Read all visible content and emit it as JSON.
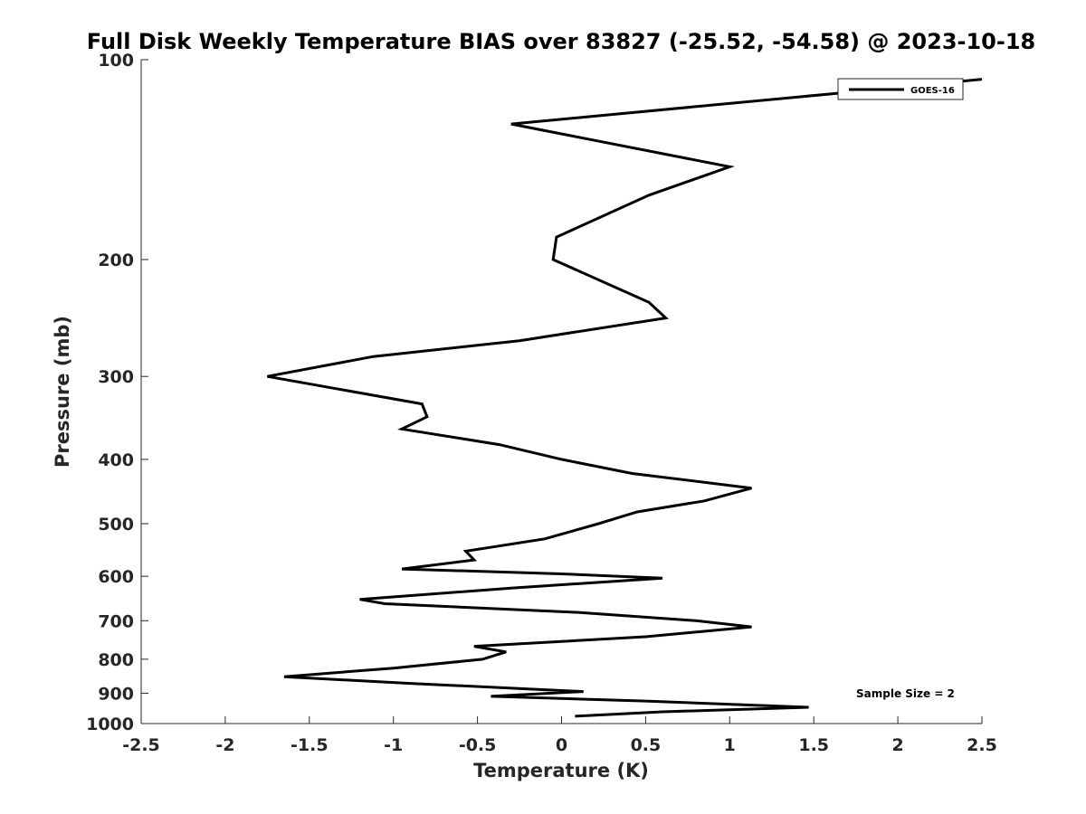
{
  "chart_data": {
    "type": "line",
    "title": "Full Disk Weekly Temperature BIAS over 83827 (-25.52, -54.58) @ 2023-10-18",
    "xlabel": "Temperature (K)",
    "ylabel": "Pressure (mb)",
    "xlim": [
      -2.5,
      2.5
    ],
    "ylim": [
      100,
      1000
    ],
    "yscale": "log",
    "yreversed": true,
    "grid": false,
    "legend_position": "top-right",
    "x_ticks": [
      -2.5,
      -2,
      -1.5,
      -1,
      -0.5,
      0,
      0.5,
      1,
      1.5,
      2,
      2.5
    ],
    "x_tick_labels": [
      "-2.5",
      "-2",
      "-1.5",
      "-1",
      "-0.5",
      "0",
      "0.5",
      "1",
      "1.5",
      "2",
      "2.5"
    ],
    "y_ticks": [
      100,
      200,
      300,
      400,
      500,
      600,
      700,
      800,
      900,
      1000
    ],
    "y_tick_labels": [
      "100",
      "200",
      "300",
      "400",
      "500",
      "600",
      "700",
      "800",
      "900",
      "1000"
    ],
    "series": [
      {
        "name": "GOES-16",
        "color": "#000000",
        "points": [
          {
            "x": 0.08,
            "p": 975
          },
          {
            "x": 0.6,
            "p": 960
          },
          {
            "x": 1.47,
            "p": 945
          },
          {
            "x": 0.5,
            "p": 925
          },
          {
            "x": -0.42,
            "p": 910
          },
          {
            "x": 0.13,
            "p": 895
          },
          {
            "x": -0.9,
            "p": 870
          },
          {
            "x": -1.65,
            "p": 850
          },
          {
            "x": -1.0,
            "p": 825
          },
          {
            "x": -0.47,
            "p": 800
          },
          {
            "x": -0.33,
            "p": 780
          },
          {
            "x": -0.52,
            "p": 765
          },
          {
            "x": 0.5,
            "p": 740
          },
          {
            "x": 1.13,
            "p": 715
          },
          {
            "x": 0.8,
            "p": 700
          },
          {
            "x": 0.1,
            "p": 680
          },
          {
            "x": -1.05,
            "p": 660
          },
          {
            "x": -1.2,
            "p": 650
          },
          {
            "x": -0.3,
            "p": 625
          },
          {
            "x": 0.6,
            "p": 604
          },
          {
            "x": 0.0,
            "p": 595
          },
          {
            "x": -0.95,
            "p": 585
          },
          {
            "x": -0.52,
            "p": 567
          },
          {
            "x": -0.57,
            "p": 550
          },
          {
            "x": -0.1,
            "p": 527
          },
          {
            "x": 0.22,
            "p": 500
          },
          {
            "x": 0.45,
            "p": 480
          },
          {
            "x": 0.85,
            "p": 462
          },
          {
            "x": 1.13,
            "p": 442
          },
          {
            "x": 0.42,
            "p": 420
          },
          {
            "x": 0.0,
            "p": 400
          },
          {
            "x": -0.37,
            "p": 380
          },
          {
            "x": -0.95,
            "p": 360
          },
          {
            "x": -0.8,
            "p": 345
          },
          {
            "x": -0.83,
            "p": 330
          },
          {
            "x": -1.75,
            "p": 300
          },
          {
            "x": -1.12,
            "p": 280
          },
          {
            "x": -0.25,
            "p": 265
          },
          {
            "x": 0.62,
            "p": 245
          },
          {
            "x": 0.52,
            "p": 232
          },
          {
            "x": -0.05,
            "p": 200
          },
          {
            "x": -0.03,
            "p": 185
          },
          {
            "x": 0.52,
            "p": 160
          },
          {
            "x": 1.0,
            "p": 145
          },
          {
            "x": -0.3,
            "p": 125
          },
          {
            "x": 1.7,
            "p": 112
          },
          {
            "x": 2.5,
            "p": 107
          }
        ]
      }
    ],
    "annotation": "Sample Size = 2"
  }
}
